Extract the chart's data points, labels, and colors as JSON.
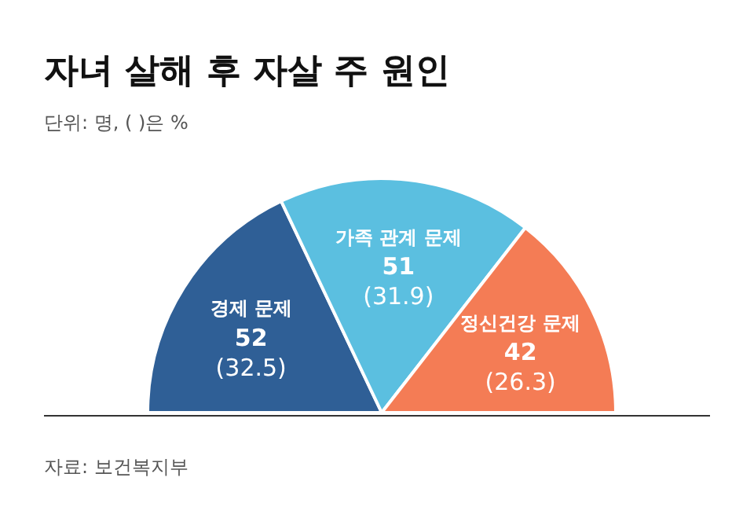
{
  "chart_data": {
    "type": "pie",
    "title": "자녀 살해 후 자살 주 원인",
    "subtitle": "단위: 명, ( )은 %",
    "categories": [
      "경제 문제",
      "가족 관계 문제",
      "정신건강 문제"
    ],
    "values": [
      52,
      51,
      42
    ],
    "colors": [
      "#2f5f96",
      "#5bbfe0",
      "#f47c55"
    ],
    "value_labels": [
      "52\n(32.5)",
      "51\n(31.9)",
      "42\n(26.3)"
    ],
    "legend": false,
    "annotations": [
      "자료: 보건복지부"
    ]
  }
}
